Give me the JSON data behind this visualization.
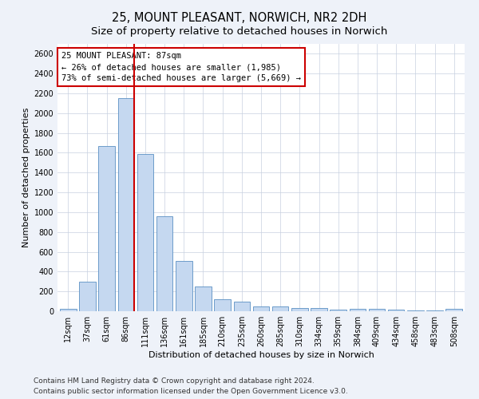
{
  "title": "25, MOUNT PLEASANT, NORWICH, NR2 2DH",
  "subtitle": "Size of property relative to detached houses in Norwich",
  "xlabel": "Distribution of detached houses by size in Norwich",
  "ylabel": "Number of detached properties",
  "categories": [
    "12sqm",
    "37sqm",
    "61sqm",
    "86sqm",
    "111sqm",
    "136sqm",
    "161sqm",
    "185sqm",
    "210sqm",
    "235sqm",
    "260sqm",
    "285sqm",
    "310sqm",
    "334sqm",
    "359sqm",
    "384sqm",
    "409sqm",
    "434sqm",
    "458sqm",
    "483sqm",
    "508sqm"
  ],
  "values": [
    25,
    300,
    1670,
    2150,
    1590,
    960,
    505,
    250,
    120,
    100,
    50,
    50,
    35,
    35,
    20,
    25,
    25,
    20,
    10,
    5,
    25
  ],
  "bar_color": "#c5d8f0",
  "bar_edge_color": "#5a8fc3",
  "vline_index": 3,
  "annotation_line0": "25 MOUNT PLEASANT: 87sqm",
  "annotation_line1": "← 26% of detached houses are smaller (1,985)",
  "annotation_line2": "73% of semi-detached houses are larger (5,669) →",
  "vline_color": "#cc0000",
  "annotation_box_edge_color": "#cc0000",
  "annotation_box_face_color": "#ffffff",
  "ylim": [
    0,
    2700
  ],
  "yticks": [
    0,
    200,
    400,
    600,
    800,
    1000,
    1200,
    1400,
    1600,
    1800,
    2000,
    2200,
    2400,
    2600
  ],
  "footnote1": "Contains HM Land Registry data © Crown copyright and database right 2024.",
  "footnote2": "Contains public sector information licensed under the Open Government Licence v3.0.",
  "bg_color": "#eef2f9",
  "plot_bg_color": "#ffffff",
  "title_fontsize": 10.5,
  "subtitle_fontsize": 9.5,
  "axis_label_fontsize": 8,
  "tick_fontsize": 7,
  "footnote_fontsize": 6.5,
  "annotation_fontsize": 7.5
}
